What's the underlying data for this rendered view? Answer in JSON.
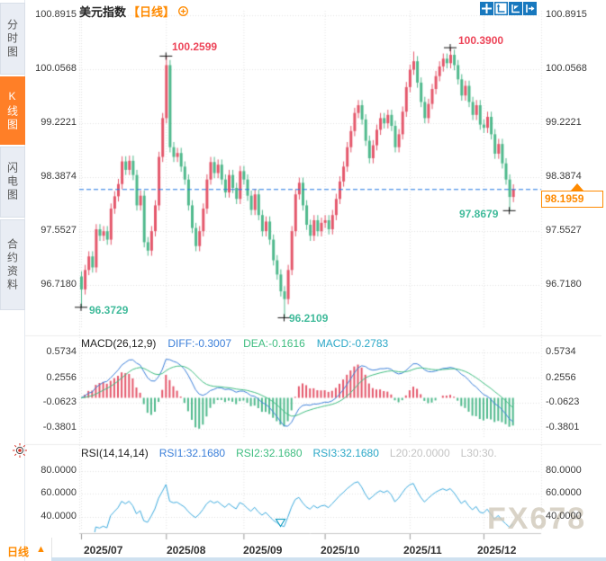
{
  "header": {
    "title": "美元指数",
    "period_tag": "【日线】"
  },
  "sidebar": {
    "tabs": [
      {
        "label": "分时图",
        "active": false
      },
      {
        "label": "K线图",
        "active": true
      },
      {
        "label": "闪电图",
        "active": false
      },
      {
        "label": "合约资料",
        "active": false
      }
    ]
  },
  "toolbar": {
    "icons": [
      "move",
      "x-axis-scale",
      "y-axis-scale",
      "exit-view"
    ]
  },
  "main_chart": {
    "axis_labels": [
      "100.8915",
      "100.0568",
      "99.2221",
      "98.3874",
      "97.5527",
      "96.7180"
    ],
    "price_top": 100.8915,
    "price_step": 0.8347,
    "current_price": "98.1959",
    "current_price_value": 98.1959,
    "annotations": [
      {
        "text": "100.2599",
        "color": "red",
        "index": 23,
        "type": "high"
      },
      {
        "text": "100.3900",
        "color": "red",
        "index": 100,
        "type": "high"
      },
      {
        "text": "97.8679",
        "color": "green",
        "index": 116,
        "type": "low"
      },
      {
        "text": "96.3729",
        "color": "green",
        "index": 0,
        "type": "low"
      },
      {
        "text": "96.2109",
        "color": "green",
        "index": 55,
        "type": "low"
      }
    ],
    "candles": {
      "first_open": 96.85,
      "closes": [
        96.65,
        96.95,
        97.16,
        96.99,
        97.58,
        97.48,
        97.55,
        97.42,
        97.9,
        98.09,
        98.28,
        98.63,
        98.5,
        98.64,
        98.42,
        97.95,
        98.1,
        97.38,
        97.25,
        97.55,
        97.95,
        98.7,
        99.3,
        100.12,
        98.85,
        98.7,
        98.76,
        98.55,
        98.35,
        97.95,
        97.6,
        97.32,
        97.55,
        97.9,
        98.35,
        98.62,
        98.45,
        98.58,
        98.35,
        98.15,
        98.42,
        98.22,
        98.05,
        98.48,
        98.35,
        98.1,
        97.88,
        98.12,
        97.8,
        97.55,
        97.7,
        97.42,
        97.1,
        96.88,
        96.62,
        96.5,
        96.95,
        97.55,
        98.12,
        98.3,
        97.95,
        97.65,
        97.48,
        97.72,
        97.55,
        97.68,
        97.72,
        97.58,
        97.8,
        98.05,
        98.32,
        98.55,
        98.85,
        99.1,
        99.38,
        99.5,
        99.28,
        98.95,
        98.68,
        98.88,
        99.12,
        99.3,
        99.22,
        99.35,
        99.18,
        98.85,
        99.05,
        99.4,
        99.78,
        100.05,
        100.18,
        99.85,
        99.55,
        99.3,
        99.52,
        99.75,
        99.95,
        100.1,
        100.22,
        100.15,
        100.28,
        100.12,
        99.9,
        99.65,
        99.8,
        99.55,
        99.35,
        99.5,
        99.2,
        99.15,
        99.32,
        99.05,
        98.75,
        98.9,
        98.6,
        98.35,
        98.08,
        98.196
      ],
      "high_overrides": {
        "23": 100.2599,
        "90": 100.33,
        "100": 100.39
      },
      "low_overrides": {
        "0": 96.3729,
        "55": 96.2109,
        "116": 97.8679
      }
    }
  },
  "macd": {
    "label": "MACD(26,12,9)",
    "diff_label": "DIFF:-0.3007",
    "dea_label": "DEA:-0.1616",
    "macd_label": "MACD:-0.2783",
    "axis_labels": [
      "0.5734",
      "0.2556",
      "-0.0623",
      "-0.3801"
    ],
    "params": {
      "fast": 12,
      "slow": 26,
      "signal": 9
    }
  },
  "rsi": {
    "label": "RSI(14,14,14)",
    "rsi1_label": "RSI1:32.1680",
    "rsi2_label": "RSI2:32.1680",
    "rsi3_label": "RSI3:32.1680",
    "l20_label": "L20:20.0000",
    "l30_label": "L30:30.",
    "axis_labels": [
      "80.0000",
      "60.0000",
      "40.0000"
    ],
    "period": 14,
    "low_marker_index": 55
  },
  "xaxis": {
    "months": [
      "2025/07",
      "2025/08",
      "2025/09",
      "2025/10",
      "2025/11",
      "2025/12"
    ],
    "month_indices": [
      0,
      23,
      44,
      66,
      89,
      109
    ]
  },
  "footer": {
    "period_label": "日线",
    "arrow": "▲"
  },
  "watermark": "FX678",
  "colors": {
    "up": "#e4576b",
    "down": "#4fb98c",
    "diff_line": "#3b7fd9",
    "dea_line": "#3fbd80",
    "rsi_line": "#3aa9dd",
    "dash_line": "#2277e0",
    "grid": "#e2e2e2",
    "annotation_red": "#ed4357",
    "annotation_green": "#41bb9b",
    "accent_orange": "#ff8a00",
    "toolbar_blue": "#1878be"
  }
}
